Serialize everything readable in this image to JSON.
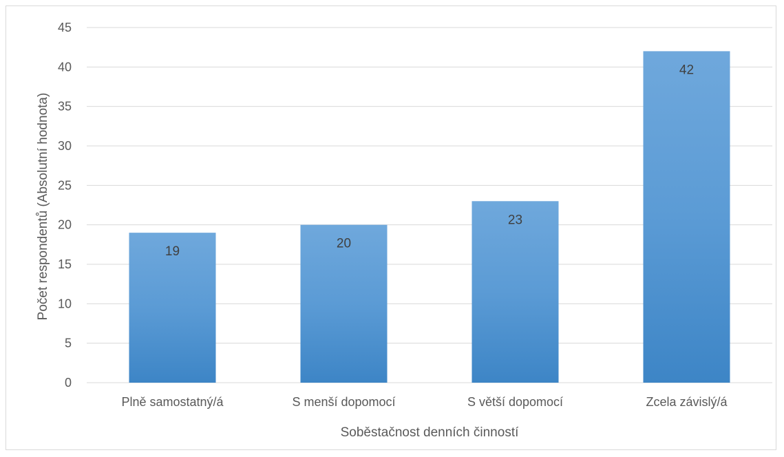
{
  "chart_data": {
    "type": "bar",
    "title": "",
    "xlabel": "Soběstačnost denních činností",
    "ylabel": "Počet respondentů (Absolutní hodnota)",
    "categories": [
      "Plně samostatný/á",
      "S menší dopomocí",
      "S větší dopomocí",
      "Zcela závislý/á"
    ],
    "values": [
      19,
      20,
      23,
      42
    ],
    "ylim": [
      0,
      45
    ],
    "yticks": [
      0,
      5,
      10,
      15,
      20,
      25,
      30,
      35,
      40,
      45
    ],
    "grid": true,
    "legend": "none",
    "bar_color_top": "#6fa8dc",
    "bar_color_bottom": "#3d85c6",
    "gridline_color": "#d9d9d9"
  }
}
